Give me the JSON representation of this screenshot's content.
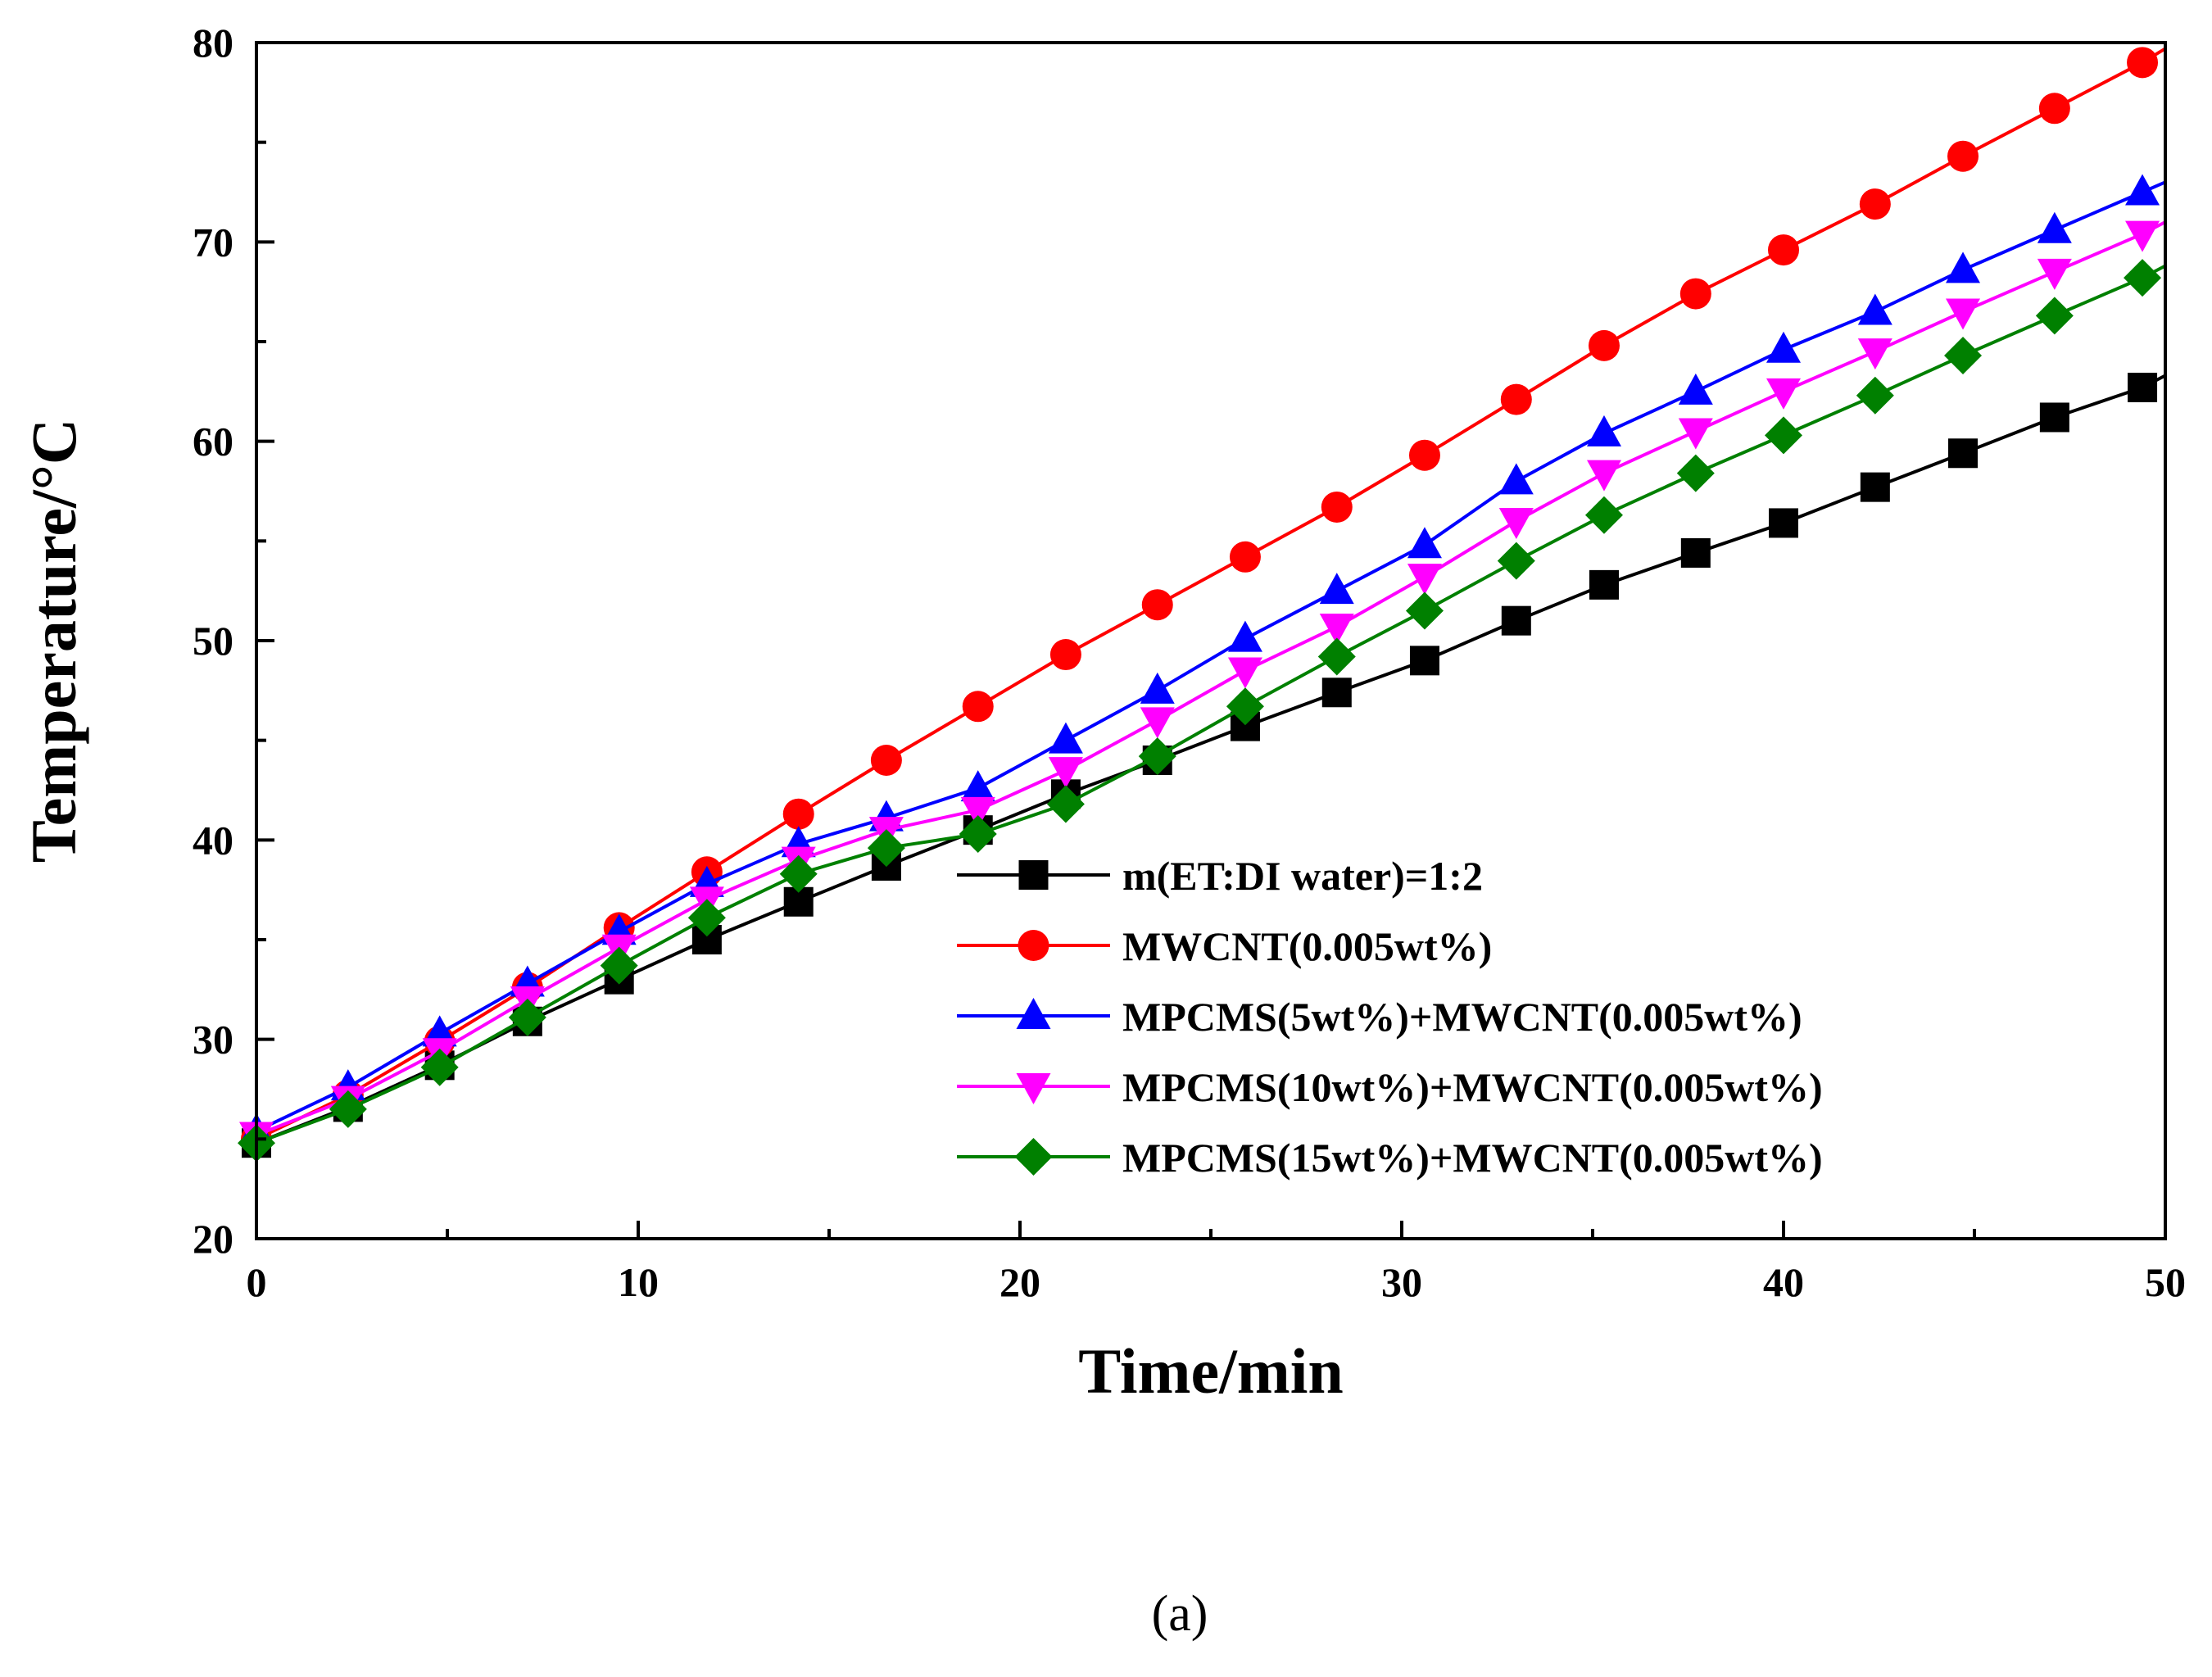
{
  "chart_data": {
    "type": "line",
    "title": "",
    "xlabel": "Time/min",
    "ylabel": "Temperature/°C",
    "xlim": [
      0,
      50
    ],
    "ylim": [
      20,
      80
    ],
    "xticks": [
      "0",
      "10",
      "20",
      "30",
      "40",
      "50"
    ],
    "yticks": [
      "20",
      "30",
      "40",
      "50",
      "60",
      "70",
      "80"
    ],
    "grid": false,
    "legend_position": "bottom-right",
    "caption": "(a)",
    "x": [
      0,
      2.4,
      4.8,
      7.1,
      9.5,
      11.8,
      14.2,
      16.5,
      18.9,
      21.2,
      23.6,
      25.9,
      28.3,
      30.6,
      33.0,
      35.3,
      37.7,
      40.0,
      42.4,
      44.7,
      47.1,
      49.4
    ],
    "series": [
      {
        "name": "m(ET:DI water)=1:2",
        "color": "#000000",
        "marker": "square",
        "values": [
          24.8,
          26.6,
          28.7,
          30.9,
          33.0,
          35.0,
          36.9,
          38.7,
          40.5,
          42.3,
          44.0,
          45.7,
          47.4,
          49.0,
          51.0,
          52.8,
          54.4,
          55.9,
          57.7,
          59.4,
          61.2,
          62.7
        ],
        "end": 63.3
      },
      {
        "name": "MWCNT(0.005wt%)",
        "color": "#ff0000",
        "marker": "circle",
        "values": [
          25.0,
          27.2,
          29.9,
          32.6,
          35.6,
          38.4,
          41.3,
          44.0,
          46.7,
          49.3,
          51.8,
          54.2,
          56.7,
          59.3,
          62.1,
          64.8,
          67.4,
          69.6,
          71.9,
          74.3,
          76.7,
          79.0
        ],
        "end": 79.7
      },
      {
        "name": "MPCMS(5wt%)+MWCNT(0.005wt%)",
        "color": "#0000ff",
        "marker": "triangle-up",
        "values": [
          25.4,
          27.6,
          30.3,
          32.8,
          35.4,
          37.8,
          39.8,
          41.1,
          42.6,
          45.0,
          47.5,
          50.1,
          52.5,
          54.8,
          58.0,
          60.4,
          62.5,
          64.6,
          66.5,
          68.6,
          70.6,
          72.5
        ],
        "end": 73.0
      },
      {
        "name": "MPCMS(10wt%)+MWCNT(0.005wt%)",
        "color": "#ff00ff",
        "marker": "triangle-down",
        "values": [
          25.2,
          27.0,
          29.4,
          32.0,
          34.6,
          37.0,
          39.0,
          40.5,
          41.5,
          43.5,
          46.0,
          48.5,
          50.7,
          53.2,
          56.0,
          58.4,
          60.5,
          62.5,
          64.5,
          66.5,
          68.5,
          70.4
        ],
        "end": 71.0
      },
      {
        "name": "MPCMS(15wt%)+MWCNT(0.005wt%)",
        "color": "#008000",
        "marker": "diamond",
        "values": [
          24.8,
          26.5,
          28.6,
          31.1,
          33.7,
          36.1,
          38.3,
          39.6,
          40.3,
          41.8,
          44.2,
          46.7,
          49.2,
          51.5,
          54.0,
          56.3,
          58.4,
          60.3,
          62.3,
          64.3,
          66.3,
          68.2
        ],
        "end": 68.8
      }
    ]
  }
}
